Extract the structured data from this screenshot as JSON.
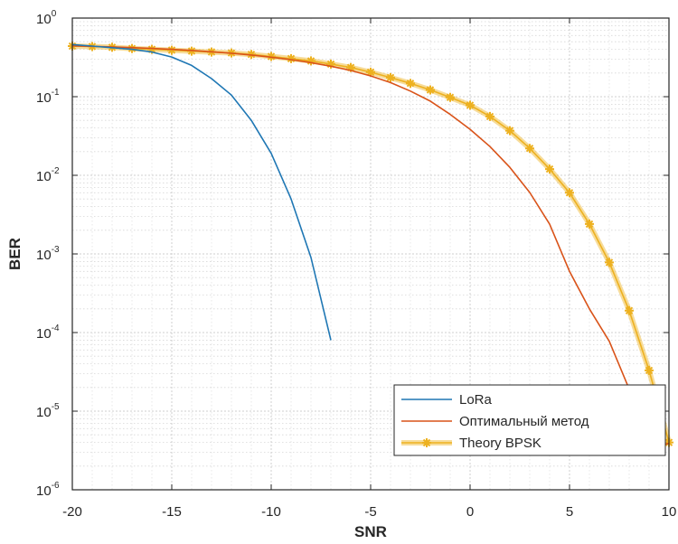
{
  "chart_data": {
    "type": "line",
    "title": "",
    "xlabel": "SNR",
    "ylabel": "BER",
    "xlim": [
      -20,
      10
    ],
    "ylim": [
      1e-06,
      1
    ],
    "yscale": "log",
    "grid": "major and minor",
    "legend_position": "bottom-right",
    "x_ticks": [
      "-20",
      "-15",
      "-10",
      "-5",
      "0",
      "5",
      "10"
    ],
    "y_ticks": [
      {
        "base": "10",
        "exp": "0"
      },
      {
        "base": "10",
        "exp": "-1"
      },
      {
        "base": "10",
        "exp": "-2"
      },
      {
        "base": "10",
        "exp": "-3"
      },
      {
        "base": "10",
        "exp": "-4"
      },
      {
        "base": "10",
        "exp": "-5"
      },
      {
        "base": "10",
        "exp": "-6"
      }
    ],
    "series": [
      {
        "name": "LoRa",
        "color": "#1f77b4",
        "marker": "none",
        "x": [
          -20,
          -19,
          -18,
          -17,
          -16,
          -15,
          -14,
          -13,
          -12,
          -11,
          -10,
          -9,
          -8,
          -7
        ],
        "y": [
          0.46,
          0.44,
          0.42,
          0.4,
          0.37,
          0.32,
          0.25,
          0.17,
          0.105,
          0.05,
          0.019,
          0.005,
          0.0009,
          8e-05
        ]
      },
      {
        "name": "Оптимальный метод",
        "color": "#d95319",
        "marker": "none",
        "x": [
          -20,
          -19,
          -18,
          -17,
          -16,
          -15,
          -14,
          -13,
          -12,
          -11,
          -10,
          -9,
          -8,
          -7,
          -6,
          -5,
          -4,
          -3,
          -2,
          -1,
          0,
          1,
          2,
          3,
          4,
          5,
          6,
          7,
          8,
          9,
          10
        ],
        "y": [
          0.4437,
          0.4372,
          0.4297,
          0.4211,
          0.4113,
          0.4001,
          0.3874,
          0.373,
          0.3568,
          0.3386,
          0.3183,
          0.2959,
          0.2712,
          0.2443,
          0.2152,
          0.184,
          0.1513,
          0.1177,
          0.08786,
          0.05945,
          0.03843,
          0.02321,
          0.01261,
          0.00605,
          0.002388,
          0.0006,
          0.0002,
          7.73e-05,
          1.91e-05,
          3.4e-06,
          3.9e-06
        ]
      },
      {
        "name": "Theory BPSK",
        "color": "#edb120",
        "marker": "star",
        "x": [
          -20,
          -19,
          -18,
          -17,
          -16,
          -15,
          -14,
          -13,
          -12,
          -11,
          -10,
          -9,
          -8,
          -7,
          -6,
          -5,
          -4,
          -3,
          -2,
          -1,
          0,
          1,
          2,
          3,
          4,
          5,
          6,
          7,
          8,
          9,
          10
        ],
        "y": [
          0.44,
          0.435,
          0.425,
          0.41,
          0.4,
          0.39,
          0.38,
          0.37,
          0.36,
          0.345,
          0.325,
          0.305,
          0.285,
          0.26,
          0.235,
          0.205,
          0.175,
          0.148,
          0.122,
          0.098,
          0.078,
          0.056,
          0.037,
          0.022,
          0.012,
          0.006,
          0.0024,
          0.00078,
          0.00019,
          3.3e-05,
          4e-06
        ]
      }
    ]
  }
}
